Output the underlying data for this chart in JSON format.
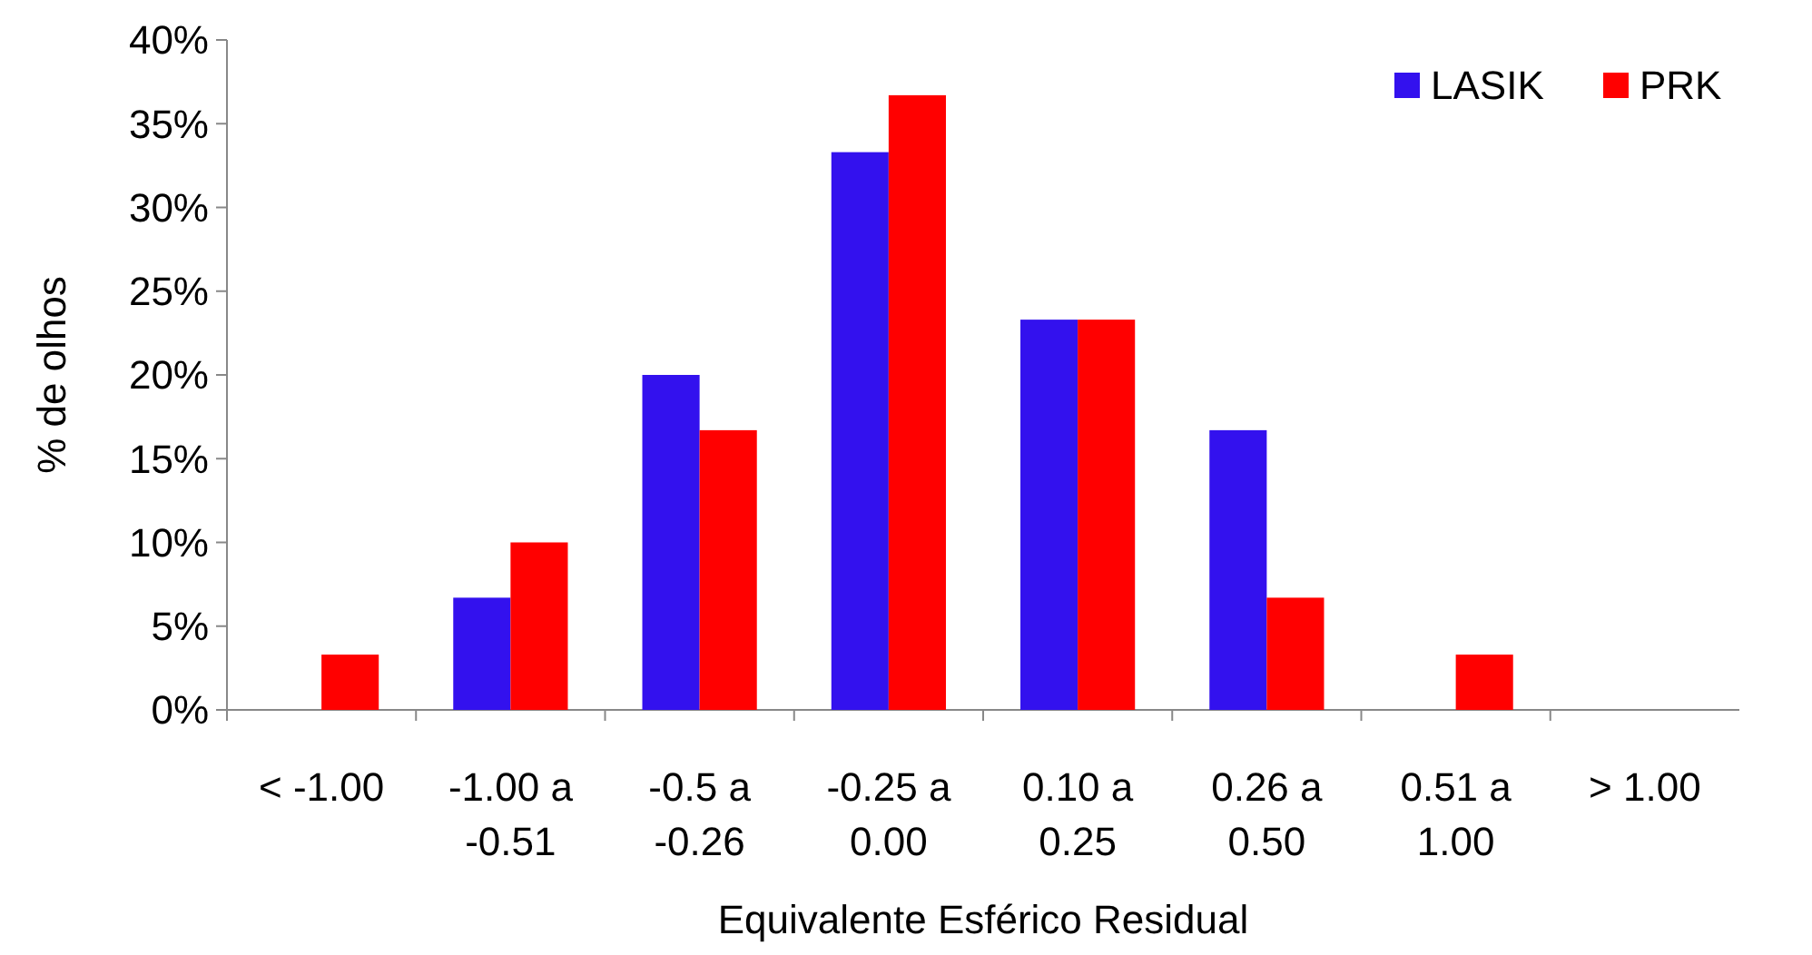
{
  "chart_data": {
    "type": "bar",
    "xlabel": "Equivalente Esférico Residual",
    "ylabel": "% de olhos",
    "categories": [
      "< -1.00",
      "-1.00 a -0.51",
      "-0.5 a -0.26",
      "-0.25 a 0.00",
      "0.10 a 0.25",
      "0.26 a 0.50",
      "0.51 a 1.00",
      "> 1.00"
    ],
    "series": [
      {
        "name": "LASIK",
        "color": "#3311ee",
        "values": [
          0,
          6.7,
          20,
          33.3,
          23.3,
          16.7,
          0,
          0
        ]
      },
      {
        "name": "PRK",
        "color": "#ff0000",
        "values": [
          3.3,
          10,
          16.7,
          36.7,
          23.3,
          6.7,
          3.3,
          0
        ]
      }
    ],
    "ylim": [
      0,
      40
    ],
    "yticks": [
      {
        "value": 0,
        "label": "0%"
      },
      {
        "value": 5,
        "label": "5%"
      },
      {
        "value": 10,
        "label": "10%"
      },
      {
        "value": 15,
        "label": "15%"
      },
      {
        "value": 20,
        "label": "20%"
      },
      {
        "value": 25,
        "label": "25%"
      },
      {
        "value": 30,
        "label": "30%"
      },
      {
        "value": 35,
        "label": "35%"
      },
      {
        "value": 40,
        "label": "40%"
      }
    ],
    "grid": false,
    "legend": "top right"
  }
}
